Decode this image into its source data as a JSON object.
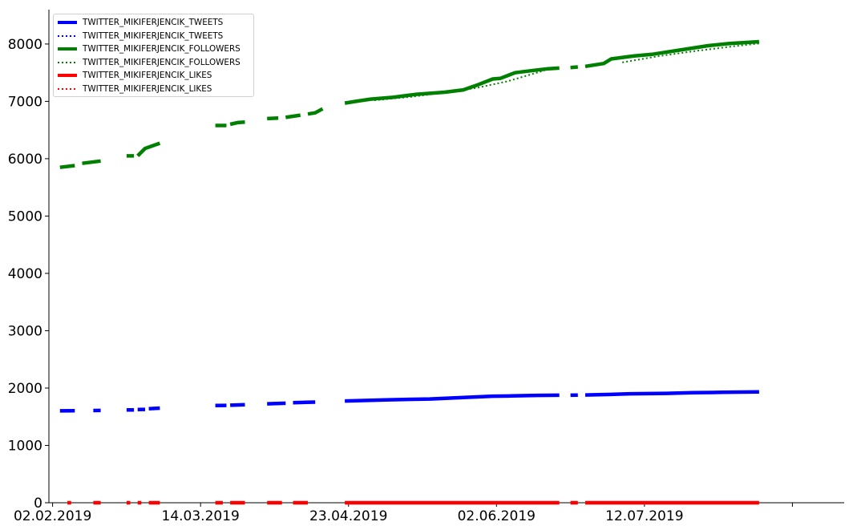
{
  "colors": {
    "tweets": "#0000ff",
    "followers": "#008000",
    "likes": "#ff0000"
  },
  "chart_data": {
    "type": "line",
    "title": "",
    "xlabel": "",
    "ylabel": "",
    "ylim": [
      0,
      8600
    ],
    "xlim": [
      "2019-02-01",
      "2019-09-04"
    ],
    "grid": false,
    "legend_position": "top-left",
    "x_ticks": [
      "02.02.2019",
      "14.03.2019",
      "23.04.2019",
      "02.06.2019",
      "12.07.2019",
      ""
    ],
    "y_ticks": [
      "0",
      "1000",
      "2000",
      "3000",
      "4000",
      "5000",
      "6000",
      "7000",
      "8000"
    ],
    "series": [
      {
        "name": "TWITTER_MIKIFERJENCIK_TWEETS",
        "color": "#0000ff",
        "style": "solid",
        "segments": [
          [
            [
              "2019-02-04",
              1603
            ],
            [
              "2019-02-08",
              1605
            ]
          ],
          [
            [
              "2019-02-13",
              1608
            ],
            [
              "2019-02-15",
              1610
            ]
          ],
          [
            [
              "2019-02-22",
              1618
            ],
            [
              "2019-02-24",
              1620
            ]
          ],
          [
            [
              "2019-02-25",
              1625
            ],
            [
              "2019-02-27",
              1628
            ]
          ],
          [
            [
              "2019-02-28",
              1640
            ],
            [
              "2019-03-03",
              1650
            ]
          ],
          [
            [
              "2019-03-18",
              1695
            ],
            [
              "2019-03-21",
              1698
            ]
          ],
          [
            [
              "2019-03-22",
              1700
            ],
            [
              "2019-03-26",
              1710
            ]
          ],
          [
            [
              "2019-04-01",
              1725
            ],
            [
              "2019-04-06",
              1735
            ]
          ],
          [
            [
              "2019-04-08",
              1745
            ],
            [
              "2019-04-14",
              1755
            ]
          ],
          [
            [
              "2019-04-22",
              1775
            ],
            [
              "2019-05-04",
              1795
            ],
            [
              "2019-05-15",
              1810
            ],
            [
              "2019-05-24",
              1835
            ],
            [
              "2019-06-01",
              1858
            ],
            [
              "2019-06-06",
              1862
            ],
            [
              "2019-06-13",
              1872
            ],
            [
              "2019-06-19",
              1875
            ]
          ],
          [
            [
              "2019-06-22",
              1875
            ],
            [
              "2019-06-24",
              1878
            ]
          ],
          [
            [
              "2019-06-26",
              1880
            ],
            [
              "2019-07-02",
              1888
            ],
            [
              "2019-07-08",
              1900
            ],
            [
              "2019-07-18",
              1908
            ],
            [
              "2019-07-25",
              1918
            ],
            [
              "2019-08-02",
              1925
            ],
            [
              "2019-08-12",
              1932
            ]
          ]
        ]
      },
      {
        "name": "TWITTER_MIKIFERJENCIK_TWEETS",
        "color": "#0000ff",
        "style": "dotted",
        "segments": []
      },
      {
        "name": "TWITTER_MIKIFERJENCIK_FOLLOWERS",
        "color": "#008000",
        "style": "solid",
        "segments": [
          [
            [
              "2019-02-04",
              5850
            ],
            [
              "2019-02-08",
              5880
            ]
          ],
          [
            [
              "2019-02-10",
              5920
            ],
            [
              "2019-02-15",
              5960
            ]
          ],
          [
            [
              "2019-02-22",
              6050
            ],
            [
              "2019-02-24",
              6050
            ]
          ],
          [
            [
              "2019-02-25",
              6050
            ],
            [
              "2019-02-27",
              6180
            ],
            [
              "2019-03-03",
              6270
            ]
          ],
          [
            [
              "2019-03-18",
              6580
            ],
            [
              "2019-03-21",
              6580
            ]
          ],
          [
            [
              "2019-03-22",
              6600
            ],
            [
              "2019-03-24",
              6630
            ],
            [
              "2019-03-26",
              6640
            ]
          ],
          [
            [
              "2019-04-01",
              6700
            ],
            [
              "2019-04-04",
              6710
            ]
          ],
          [
            [
              "2019-04-06",
              6720
            ],
            [
              "2019-04-10",
              6760
            ]
          ],
          [
            [
              "2019-04-12",
              6780
            ],
            [
              "2019-04-14",
              6800
            ],
            [
              "2019-04-16",
              6870
            ]
          ],
          [
            [
              "2019-04-22",
              6970
            ],
            [
              "2019-04-25",
              7000
            ],
            [
              "2019-04-29",
              7040
            ],
            [
              "2019-05-05",
              7070
            ],
            [
              "2019-05-11",
              7120
            ],
            [
              "2019-05-19",
              7160
            ],
            [
              "2019-05-24",
              7200
            ],
            [
              "2019-05-28",
              7290
            ],
            [
              "2019-06-01",
              7390
            ],
            [
              "2019-06-03",
              7400
            ],
            [
              "2019-06-07",
              7500
            ],
            [
              "2019-06-12",
              7540
            ],
            [
              "2019-06-16",
              7570
            ],
            [
              "2019-06-19",
              7580
            ]
          ],
          [
            [
              "2019-06-22",
              7590
            ],
            [
              "2019-06-24",
              7600
            ]
          ],
          [
            [
              "2019-06-26",
              7610
            ],
            [
              "2019-07-01",
              7660
            ],
            [
              "2019-07-03",
              7740
            ],
            [
              "2019-07-09",
              7790
            ],
            [
              "2019-07-14",
              7820
            ],
            [
              "2019-07-22",
              7900
            ],
            [
              "2019-07-29",
              7970
            ],
            [
              "2019-08-04",
              8010
            ],
            [
              "2019-08-12",
              8040
            ]
          ]
        ]
      },
      {
        "name": "TWITTER_MIKIFERJENCIK_FOLLOWERS",
        "color": "#008000",
        "style": "dotted",
        "segments": [
          [
            [
              "2019-04-30",
              7020
            ],
            [
              "2019-05-10",
              7080
            ],
            [
              "2019-05-20",
              7160
            ],
            [
              "2019-05-28",
              7240
            ],
            [
              "2019-06-05",
              7350
            ],
            [
              "2019-06-15",
              7540
            ]
          ],
          [
            [
              "2019-07-06",
              7680
            ],
            [
              "2019-07-16",
              7790
            ],
            [
              "2019-07-26",
              7880
            ],
            [
              "2019-08-05",
              7960
            ],
            [
              "2019-08-12",
              8010
            ]
          ]
        ]
      },
      {
        "name": "TWITTER_MIKIFERJENCIK_LIKES",
        "color": "#ff0000",
        "style": "solid",
        "segments": [
          [
            [
              "2019-02-06",
              0
            ],
            [
              "2019-02-07",
              0
            ]
          ],
          [
            [
              "2019-02-13",
              0
            ],
            [
              "2019-02-15",
              0
            ]
          ],
          [
            [
              "2019-02-22",
              0
            ],
            [
              "2019-02-23",
              0
            ]
          ],
          [
            [
              "2019-02-25",
              0
            ],
            [
              "2019-02-26",
              0
            ]
          ],
          [
            [
              "2019-02-28",
              0
            ],
            [
              "2019-03-03",
              0
            ]
          ],
          [
            [
              "2019-03-18",
              0
            ],
            [
              "2019-03-20",
              0
            ]
          ],
          [
            [
              "2019-03-22",
              0
            ],
            [
              "2019-03-26",
              0
            ]
          ],
          [
            [
              "2019-04-01",
              0
            ],
            [
              "2019-04-05",
              0
            ]
          ],
          [
            [
              "2019-04-08",
              0
            ],
            [
              "2019-04-12",
              0
            ]
          ],
          [
            [
              "2019-04-22",
              0
            ],
            [
              "2019-06-19",
              0
            ]
          ],
          [
            [
              "2019-06-22",
              0
            ],
            [
              "2019-06-24",
              0
            ]
          ],
          [
            [
              "2019-06-26",
              0
            ],
            [
              "2019-08-12",
              0
            ]
          ]
        ]
      },
      {
        "name": "TWITTER_MIKIFERJENCIK_LIKES",
        "color": "#ff0000",
        "style": "dotted",
        "segments": []
      }
    ]
  }
}
